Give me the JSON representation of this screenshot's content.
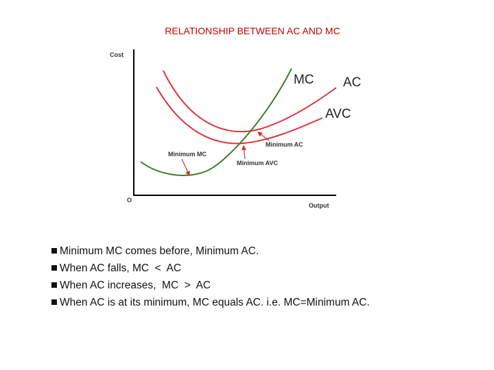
{
  "title": "RELATIONSHIP BETWEEN AC AND MC",
  "diagram": {
    "y_axis_label": "Cost",
    "x_axis_label": "Output",
    "origin_label": "O",
    "curves": [
      {
        "label": "MC"
      },
      {
        "label": "AC"
      },
      {
        "label": "AVC"
      }
    ],
    "annotations": [
      "Minimum MC",
      "Minimum AC",
      "Minimum AVC"
    ]
  },
  "bullets": [
    "Minimum MC comes before, Minimum AC.",
    "When AC falls, MC  <  AC",
    "When AC increases,  MC  >  AC",
    "When AC is at its minimum, MC equals AC. i.e. MC=Minimum AC."
  ]
}
